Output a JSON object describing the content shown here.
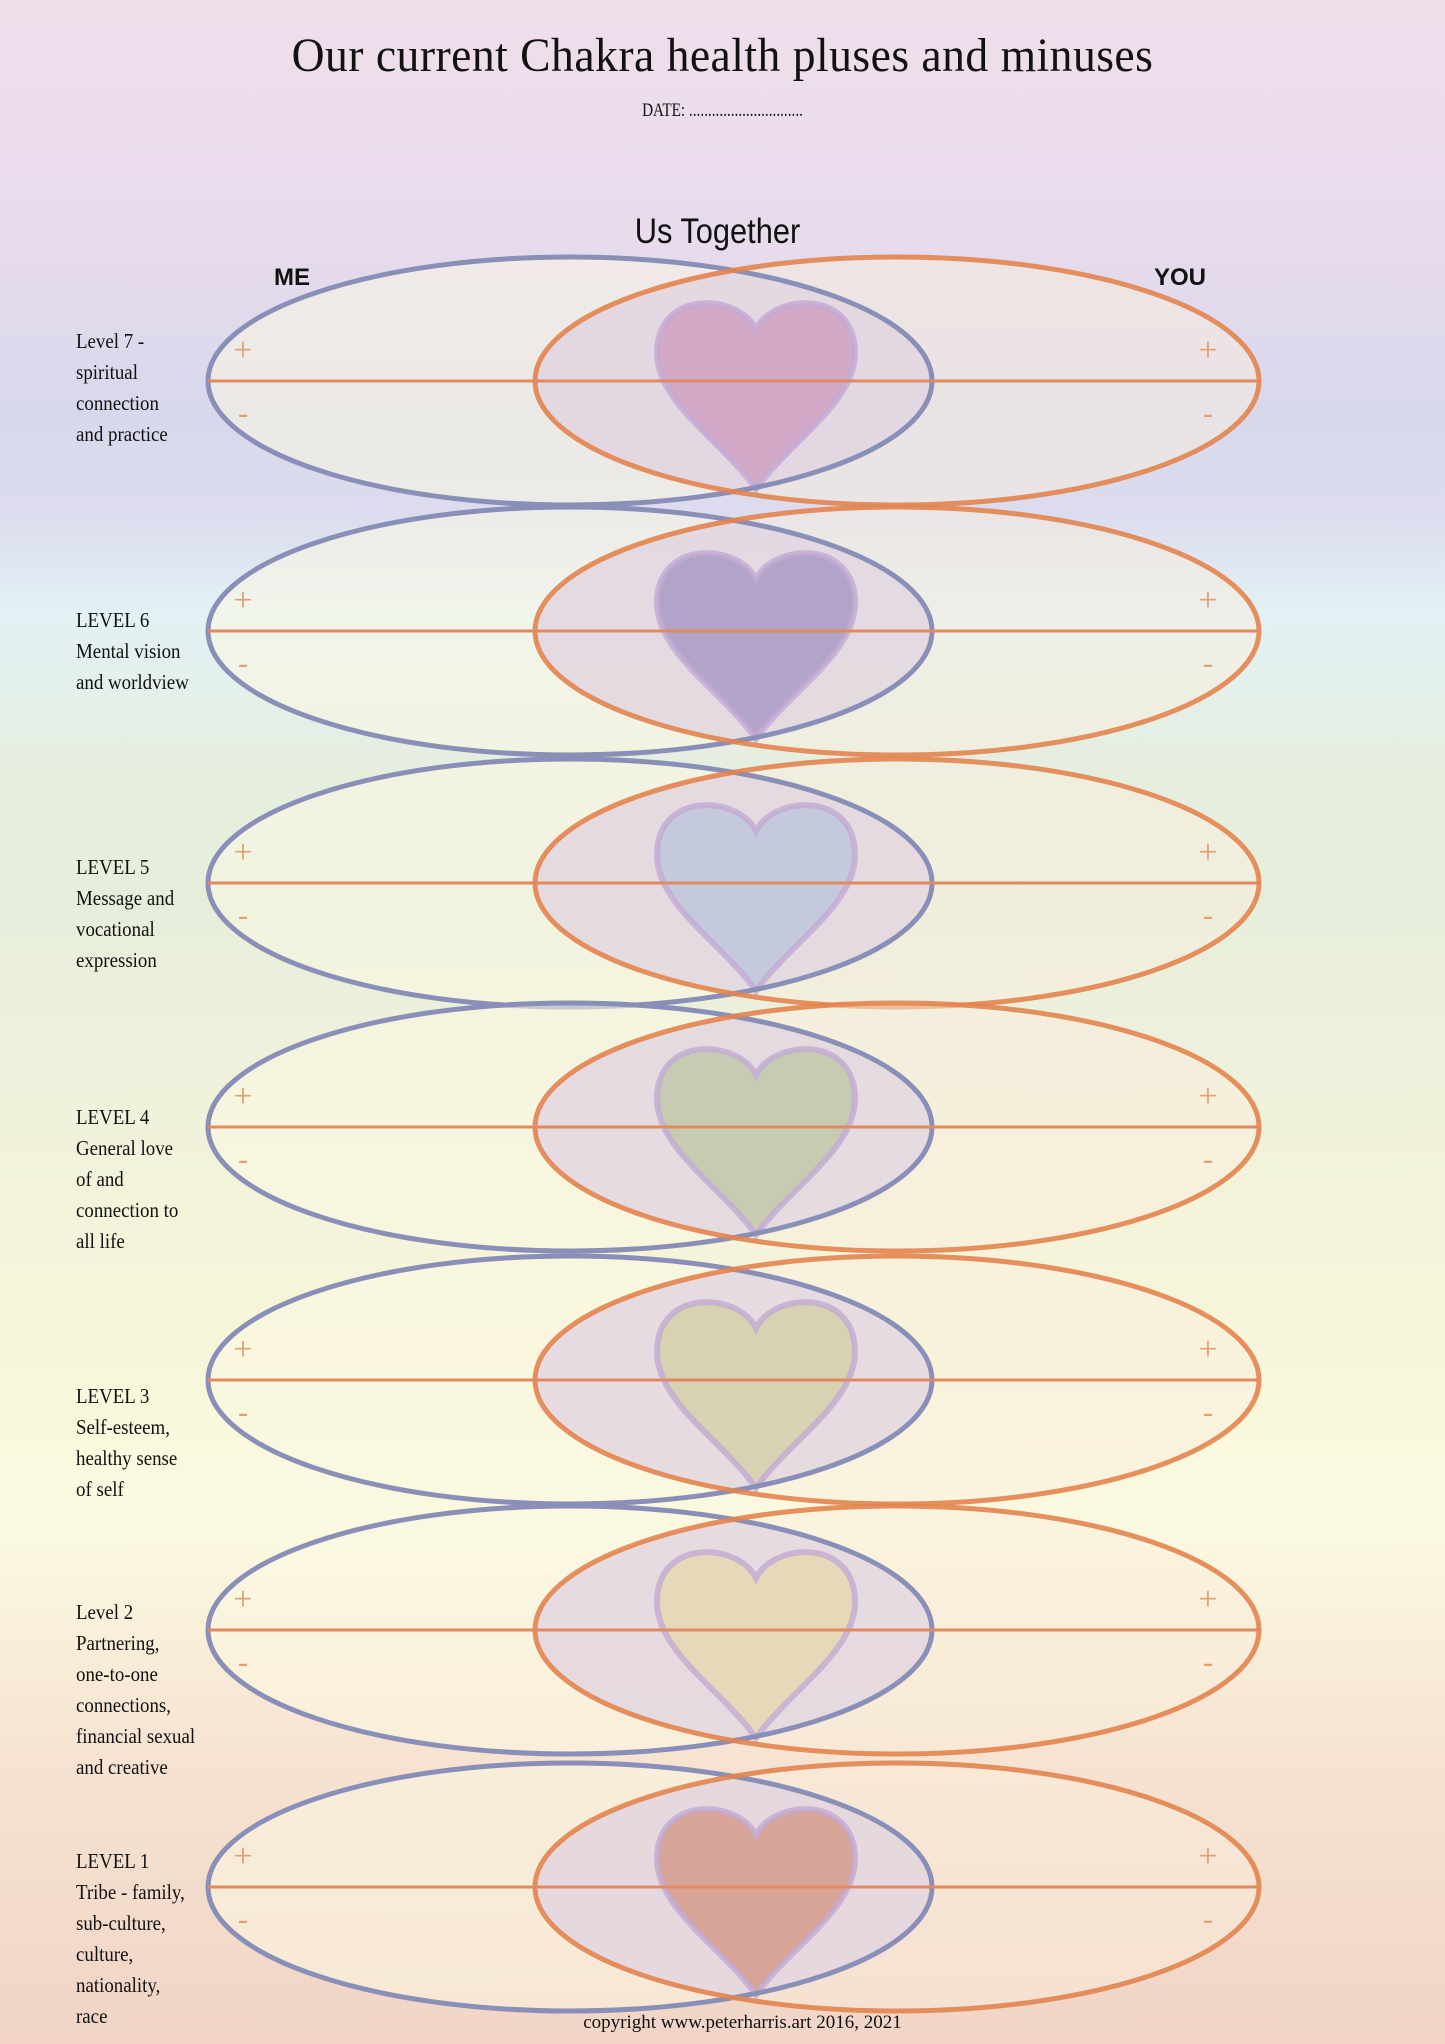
{
  "title": "Our current Chakra health pluses and minuses",
  "date_label": "DATE: ..............................",
  "center_heading": "Us Together",
  "left_heading": "ME",
  "right_heading": "YOU",
  "plus_symbol": "+",
  "minus_symbol": "-",
  "copyright": "copyright www.peterharris.art 2016, 2021",
  "colors": {
    "me_stroke": "#8a8fb8",
    "you_stroke": "#e2844f",
    "axis_line": "#e08a62",
    "heart_stroke": "#c3aad3"
  },
  "levels": [
    {
      "id": "7",
      "lines": [
        "Level 7 -",
        "spiritual",
        "connection",
        "and practice"
      ],
      "heart_color": "#d3a9c8"
    },
    {
      "id": "6",
      "lines": [
        "LEVEL 6",
        "Mental vision",
        "and worldview"
      ],
      "heart_color": "#b2a3c9"
    },
    {
      "id": "5",
      "lines": [
        "LEVEL 5",
        "Message and",
        "vocational",
        "expression"
      ],
      "heart_color": "#c4c9dc"
    },
    {
      "id": "4",
      "lines": [
        "LEVEL 4",
        "General love",
        "of and",
        "connection to",
        "all life"
      ],
      "heart_color": "#c6cbb2"
    },
    {
      "id": "3",
      "lines": [
        "LEVEL 3",
        "Self-esteem,",
        "healthy sense",
        "of self"
      ],
      "heart_color": "#d7d3b2"
    },
    {
      "id": "2",
      "lines": [
        "Level 2",
        "Partnering,",
        "one-to-one",
        "connections,",
        "financial sexual",
        "and creative"
      ],
      "heart_color": "#e5d9b9"
    },
    {
      "id": "1",
      "lines": [
        "LEVEL 1",
        "Tribe - family,",
        "sub-culture,",
        "culture,",
        "nationality,",
        "race"
      ],
      "heart_color": "#d8a497"
    }
  ]
}
